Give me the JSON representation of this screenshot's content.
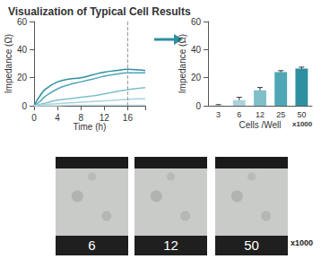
{
  "title": "Visualization of Typical Cell Results",
  "chart_data": [
    {
      "type": "line",
      "x": [
        0,
        1,
        2,
        4,
        6,
        8,
        10,
        12,
        14,
        16,
        18,
        19
      ],
      "series": [
        {
          "color": "#2e8fa0",
          "values": [
            0,
            7,
            12,
            17,
            19,
            20,
            22,
            24,
            25,
            26,
            25.5,
            25
          ]
        },
        {
          "color": "#4fa7b5",
          "values": [
            0,
            3,
            7,
            12,
            15,
            17,
            19,
            21,
            22.5,
            23.5,
            23.5,
            23.5
          ]
        },
        {
          "color": "#7fbfca",
          "values": [
            0,
            1,
            2,
            4,
            5,
            6,
            7,
            8.5,
            10,
            11.5,
            12.5,
            13
          ]
        },
        {
          "color": "#a9d3db",
          "values": [
            0,
            0.5,
            1,
            1.5,
            2,
            2.5,
            3,
            3.5,
            4,
            4.5,
            5,
            5
          ]
        },
        {
          "color": "#cde5ea",
          "values": [
            0,
            0,
            0,
            0,
            0.5,
            0.5,
            0.5,
            0.5,
            0.5,
            0.5,
            0.5,
            0.5
          ]
        }
      ],
      "x_label": "Time (h)",
      "y_label": "Impedance (Ω)",
      "xlim": [
        0,
        19
      ],
      "xticks": [
        0,
        4,
        8,
        12,
        16
      ],
      "ylim": [
        0,
        60
      ],
      "yticks": [
        0,
        20,
        40,
        60
      ],
      "vline": 16,
      "grid": false
    },
    {
      "type": "bar",
      "categories": [
        "3",
        "6",
        "12",
        "25",
        "50"
      ],
      "values": [
        0.3,
        4,
        11,
        24,
        26.5
      ],
      "errors": [
        0.5,
        2,
        2,
        1,
        1
      ],
      "colors": [
        "#cde5ea",
        "#a9d3db",
        "#7fbfca",
        "#4fa7b5",
        "#2e8fa0"
      ],
      "x_label": "Cells /Well",
      "x_unit": "x1000",
      "y_label": "Impedance (Ω)",
      "ylim": [
        0,
        60
      ],
      "yticks": [
        0,
        20,
        40,
        60
      ],
      "grid": false
    }
  ],
  "images": {
    "labels": [
      "6",
      "12",
      "50"
    ],
    "unit": "x1000"
  }
}
